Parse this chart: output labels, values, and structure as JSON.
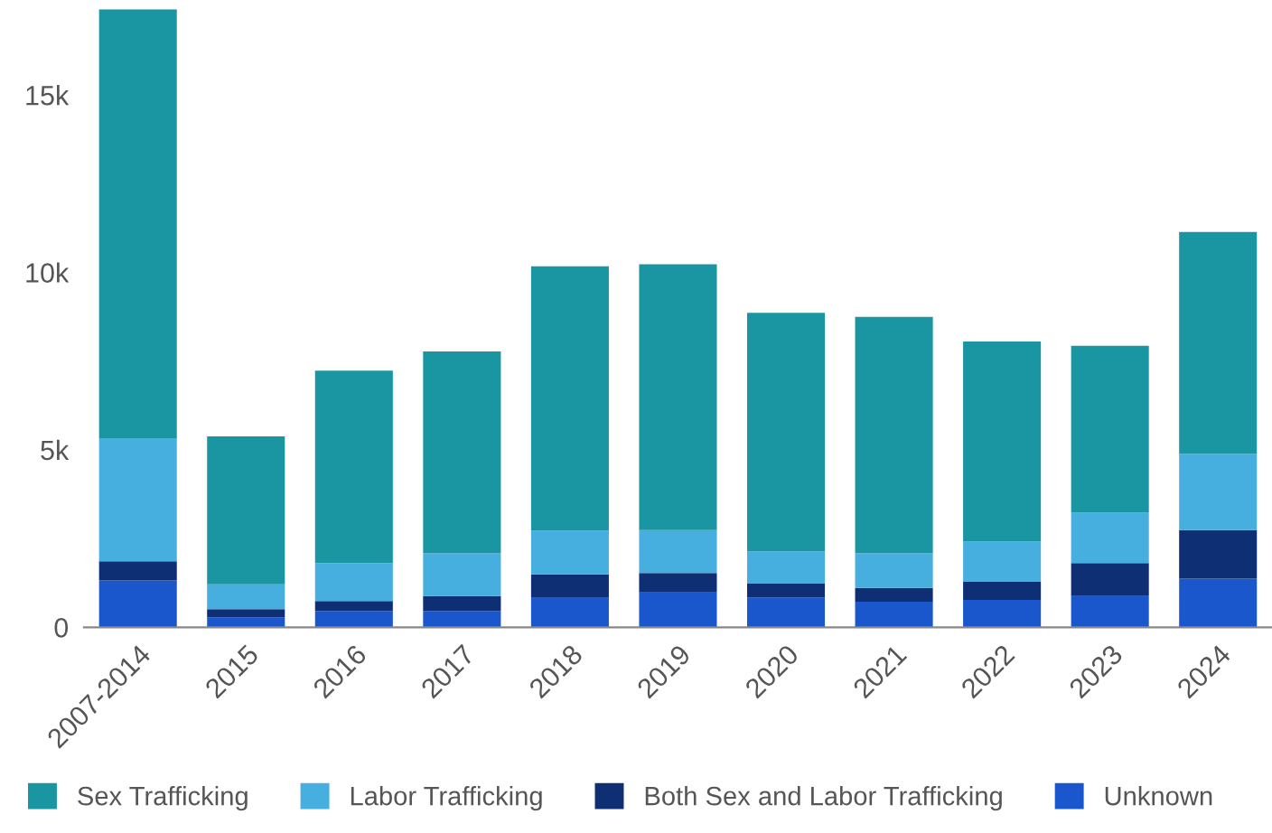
{
  "chart_data": {
    "type": "bar",
    "stacked": true,
    "categories": [
      "2007-2014",
      "2015",
      "2016",
      "2017",
      "2018",
      "2019",
      "2020",
      "2021",
      "2022",
      "2023",
      "2024"
    ],
    "series": [
      {
        "name": "Unknown",
        "color": "#1a56cc",
        "values": [
          1320,
          280,
          460,
          460,
          830,
          980,
          840,
          720,
          770,
          880,
          1370
        ]
      },
      {
        "name": "Both Sex and Labor Trafficking",
        "color": "#0f2f75",
        "values": [
          540,
          230,
          280,
          420,
          660,
          550,
          390,
          390,
          510,
          930,
          1370
        ]
      },
      {
        "name": "Labor Trafficking",
        "color": "#47aee0",
        "values": [
          3470,
          700,
          1070,
          1210,
          1230,
          1210,
          910,
          980,
          1130,
          1420,
          2150
        ]
      },
      {
        "name": "Sex Trafficking",
        "color": "#1a96a3",
        "values": [
          12090,
          4170,
          5420,
          5680,
          7450,
          7490,
          6720,
          6660,
          5640,
          4700,
          6250
        ]
      }
    ],
    "ylim": [
      0,
      17420
    ],
    "yticks": [
      {
        "value": 0,
        "label": "0"
      },
      {
        "value": 5000,
        "label": "5k"
      },
      {
        "value": 10000,
        "label": "10k"
      },
      {
        "value": 15000,
        "label": "15k"
      }
    ],
    "grid": false,
    "legend": "bottom"
  }
}
